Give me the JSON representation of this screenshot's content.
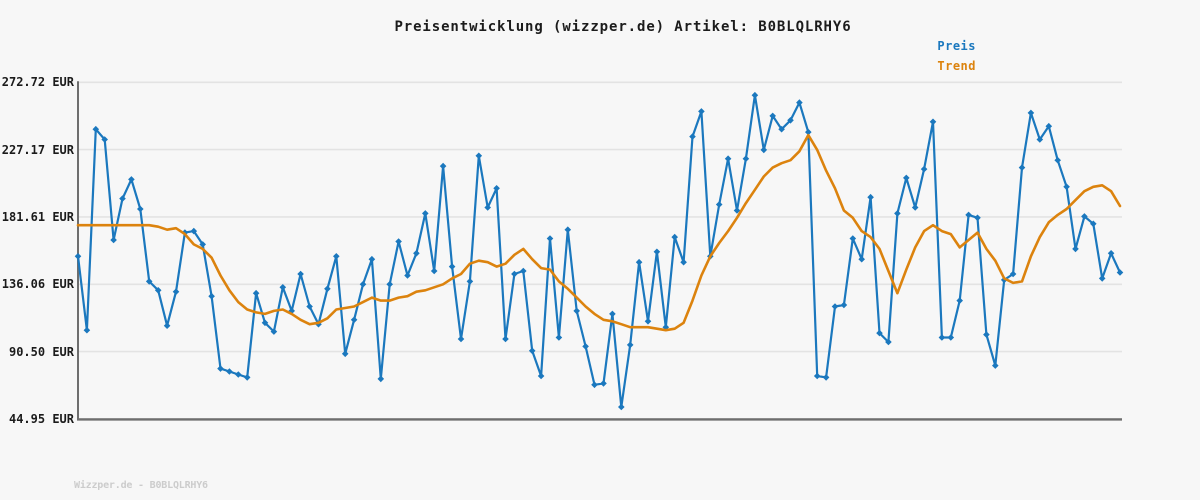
{
  "title": "Preisentwicklung (wizzper.de) Artikel: B0BLQLRHY6",
  "footer": "Wizzper.de - B0BLQLRHY6",
  "legend": [
    {
      "label": "Preis",
      "color": "#1b78be"
    },
    {
      "label": "Trend",
      "color": "#dc830e"
    }
  ],
  "colors": {
    "background": "#f7f7f7",
    "grid": "#e3e3e3",
    "axis": "#6e6e6e",
    "price": "#1b78be",
    "trend": "#dc830e",
    "title_text": "#1c1c1c",
    "tick_text": "#1b1b1b",
    "watermark_text": "#cccccc"
  },
  "chart_data": {
    "type": "line",
    "title": "Preisentwicklung (wizzper.de) Artikel: B0BLQLRHY6",
    "currency": "EUR",
    "ylim": [
      44.95,
      272.72
    ],
    "y_tick_values": [
      272.72,
      227.17,
      181.61,
      136.06,
      90.5,
      44.95
    ],
    "y_tick_labels": [
      "272.72 EUR",
      "227.17 EUR",
      "181.61 EUR",
      "136.06 EUR",
      "90.50 EUR",
      "44.95 EUR"
    ],
    "x_tick_labels": [],
    "grid": "horizontal",
    "legend_position": "top-right",
    "series": [
      {
        "name": "Preis",
        "color": "#1b78be",
        "marker": "diamond",
        "values": [
          155,
          105,
          241,
          234,
          166,
          194,
          207,
          187,
          138,
          132,
          108,
          131,
          171,
          172,
          163,
          128,
          79,
          77,
          75,
          73,
          130,
          110,
          104,
          134,
          118,
          143,
          121,
          109,
          133,
          155,
          89,
          112,
          136,
          153,
          72,
          136,
          165,
          142,
          157,
          184,
          145,
          216,
          148,
          99,
          138,
          223,
          188,
          201,
          99,
          143,
          145,
          91,
          74,
          167,
          100,
          173,
          118,
          94,
          68,
          69,
          116,
          53,
          95,
          151,
          111,
          158,
          107,
          168,
          151,
          236,
          253,
          155,
          190,
          221,
          186,
          221,
          264,
          227,
          250,
          241,
          247,
          259,
          239,
          74,
          73,
          121,
          122,
          167,
          153,
          195,
          103,
          97,
          184,
          208,
          188,
          214,
          246,
          100,
          100,
          125,
          183,
          181,
          102,
          81,
          139,
          143,
          215,
          252,
          234,
          243,
          220,
          202,
          160,
          182,
          177,
          140,
          157,
          144
        ]
      },
      {
        "name": "Trend",
        "color": "#dc830e",
        "marker": "none",
        "values": [
          176,
          176,
          176,
          176,
          176,
          176,
          176,
          176,
          176,
          175,
          173,
          174,
          170,
          163,
          160,
          154,
          142,
          132,
          124,
          119,
          117,
          116,
          118,
          119,
          116,
          112,
          109,
          110,
          113,
          119,
          120,
          121,
          124,
          127,
          125,
          125,
          127,
          128,
          131,
          132,
          134,
          136,
          140,
          143,
          150,
          152,
          151,
          148,
          150,
          156,
          160,
          153,
          147,
          146,
          138,
          133,
          127,
          121,
          116,
          112,
          111,
          109,
          107,
          107,
          107,
          106,
          105,
          106,
          110,
          125,
          142,
          155,
          164,
          172,
          181,
          191,
          200,
          209,
          215,
          218,
          220,
          226,
          237,
          227,
          213,
          201,
          186,
          181,
          172,
          168,
          160,
          145,
          130,
          146,
          161,
          172,
          176,
          172,
          170,
          161,
          166,
          171,
          160,
          152,
          140,
          137,
          138,
          155,
          168,
          178,
          183,
          187,
          193,
          199,
          202,
          203,
          199,
          189
        ]
      }
    ]
  }
}
